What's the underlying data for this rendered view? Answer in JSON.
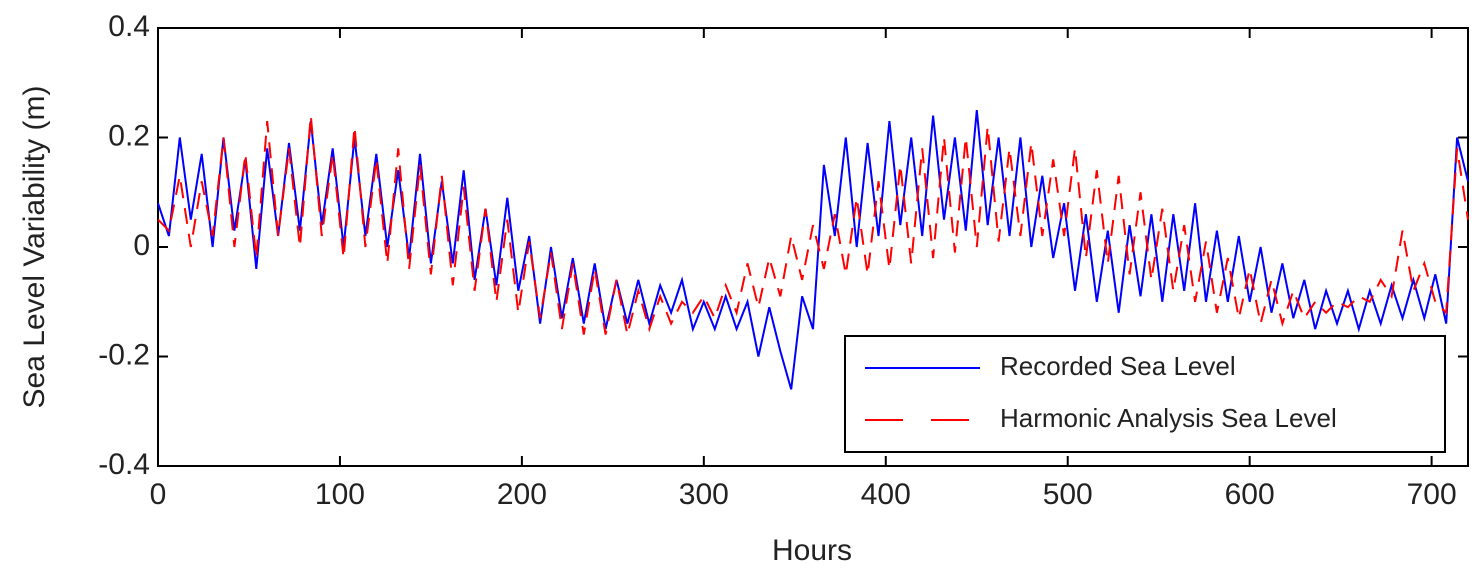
{
  "chart_data": {
    "type": "line",
    "xlabel": "Hours",
    "ylabel": "Sea Level Variability (m)",
    "x": [
      0,
      6,
      12,
      18,
      24,
      30,
      36,
      42,
      48,
      54,
      60,
      66,
      72,
      78,
      84,
      90,
      96,
      102,
      108,
      114,
      120,
      126,
      132,
      138,
      144,
      150,
      156,
      162,
      168,
      174,
      180,
      186,
      192,
      198,
      204,
      210,
      216,
      222,
      228,
      234,
      240,
      246,
      252,
      258,
      264,
      270,
      276,
      282,
      288,
      294,
      300,
      306,
      312,
      318,
      324,
      330,
      336,
      342,
      348,
      354,
      360,
      366,
      372,
      378,
      384,
      390,
      396,
      402,
      408,
      414,
      420,
      426,
      432,
      438,
      444,
      450,
      456,
      462,
      468,
      474,
      480,
      486,
      492,
      498,
      504,
      510,
      516,
      522,
      528,
      534,
      540,
      546,
      552,
      558,
      564,
      570,
      576,
      582,
      588,
      594,
      600,
      606,
      612,
      618,
      624,
      630,
      636,
      642,
      648,
      654,
      660,
      666,
      672,
      678,
      684,
      690,
      696,
      702,
      708,
      714,
      720
    ],
    "series": [
      {
        "name": "Recorded Sea Level",
        "color": "#0000ff",
        "linestyle": "solid",
        "values": [
          0.08,
          0.02,
          0.2,
          0.05,
          0.17,
          0.0,
          0.2,
          0.03,
          0.16,
          -0.04,
          0.18,
          0.02,
          0.19,
          0.03,
          0.23,
          0.04,
          0.18,
          0.0,
          0.2,
          0.02,
          0.17,
          0.0,
          0.14,
          -0.02,
          0.17,
          -0.03,
          0.12,
          -0.03,
          0.14,
          -0.06,
          0.07,
          -0.07,
          0.09,
          -0.08,
          0.02,
          -0.14,
          0.0,
          -0.13,
          -0.02,
          -0.14,
          -0.03,
          -0.15,
          -0.06,
          -0.14,
          -0.06,
          -0.14,
          -0.07,
          -0.12,
          -0.06,
          -0.15,
          -0.1,
          -0.15,
          -0.09,
          -0.15,
          -0.1,
          -0.2,
          -0.11,
          -0.19,
          -0.26,
          -0.09,
          -0.15,
          0.15,
          0.02,
          0.2,
          0.0,
          0.19,
          0.02,
          0.23,
          0.04,
          0.2,
          0.02,
          0.24,
          0.05,
          0.2,
          0.03,
          0.25,
          0.04,
          0.2,
          0.02,
          0.2,
          0.0,
          0.13,
          -0.02,
          0.08,
          -0.08,
          0.06,
          -0.1,
          0.03,
          -0.12,
          0.04,
          -0.09,
          0.06,
          -0.1,
          0.06,
          -0.08,
          0.08,
          -0.1,
          0.03,
          -0.1,
          0.02,
          -0.1,
          0.0,
          -0.12,
          -0.03,
          -0.13,
          -0.06,
          -0.15,
          -0.08,
          -0.14,
          -0.08,
          -0.15,
          -0.08,
          -0.14,
          -0.07,
          -0.13,
          -0.06,
          -0.13,
          -0.05,
          -0.14,
          0.2,
          0.12
        ]
      },
      {
        "name": "Harmonic Analysis Sea Level",
        "color": "#ff0000",
        "linestyle": "dashed",
        "values": [
          0.05,
          0.03,
          0.13,
          0.0,
          0.12,
          0.02,
          0.2,
          0.0,
          0.17,
          -0.02,
          0.23,
          0.02,
          0.18,
          0.0,
          0.24,
          0.02,
          0.17,
          -0.02,
          0.22,
          0.0,
          0.16,
          -0.03,
          0.18,
          -0.04,
          0.15,
          -0.05,
          0.13,
          -0.07,
          0.11,
          -0.08,
          0.07,
          -0.1,
          0.05,
          -0.12,
          0.01,
          -0.13,
          -0.01,
          -0.15,
          -0.03,
          -0.16,
          -0.04,
          -0.16,
          -0.06,
          -0.16,
          -0.08,
          -0.15,
          -0.09,
          -0.14,
          -0.1,
          -0.12,
          -0.09,
          -0.13,
          -0.07,
          -0.12,
          -0.03,
          -0.11,
          -0.02,
          -0.09,
          0.02,
          -0.06,
          0.04,
          -0.04,
          0.06,
          -0.05,
          0.09,
          -0.05,
          0.12,
          -0.04,
          0.15,
          -0.03,
          0.18,
          -0.02,
          0.2,
          -0.01,
          0.2,
          0.0,
          0.22,
          0.01,
          0.18,
          0.02,
          0.19,
          0.02,
          0.16,
          0.02,
          0.18,
          -0.02,
          0.14,
          -0.03,
          0.13,
          -0.05,
          0.1,
          -0.06,
          0.07,
          -0.08,
          0.04,
          -0.1,
          0.01,
          -0.12,
          -0.02,
          -0.13,
          -0.04,
          -0.14,
          -0.06,
          -0.14,
          -0.08,
          -0.13,
          -0.1,
          -0.12,
          -0.1,
          -0.11,
          -0.09,
          -0.1,
          -0.06,
          -0.09,
          0.03,
          -0.08,
          -0.03,
          -0.1,
          -0.12,
          0.18,
          0.05
        ]
      }
    ],
    "xlim": [
      0,
      720
    ],
    "xticks": [
      0,
      100,
      200,
      300,
      400,
      500,
      600,
      700
    ],
    "ylim": [
      -0.4,
      0.4
    ],
    "yticks": [
      {
        "value": -0.4,
        "label": "-0.4"
      },
      {
        "value": -0.2,
        "label": "-0.2"
      },
      0,
      {
        "value": 0.2,
        "label": "0.2"
      },
      {
        "value": 0.4,
        "label": "0.4"
      }
    ],
    "grid": false,
    "legend": "lower right"
  }
}
